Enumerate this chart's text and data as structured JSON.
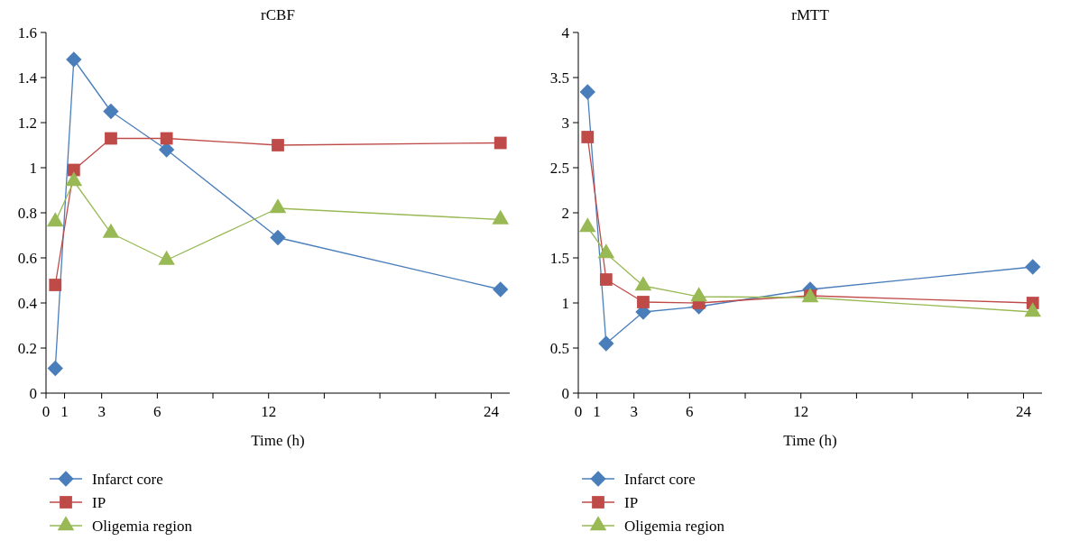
{
  "chart_data": [
    {
      "type": "line",
      "title": "rCBF",
      "xlabel": "Time (h)",
      "x": [
        0.5,
        1.5,
        3.5,
        6.5,
        12.5,
        24.5
      ],
      "xlim": [
        0,
        25
      ],
      "xticks": [
        0,
        1,
        3,
        6,
        {
          "value": 9,
          "label": null
        },
        12,
        {
          "value": 15,
          "label": null
        },
        {
          "value": 18,
          "label": null
        },
        {
          "value": 21,
          "label": null
        },
        24
      ],
      "ylim": [
        0,
        1.6
      ],
      "yticks": [
        0,
        0.2,
        0.4,
        0.6,
        0.8,
        1,
        1.2,
        1.4,
        1.6
      ],
      "grid": false,
      "legend": "bottom",
      "series": [
        {
          "name": "Infarct core",
          "color": "#4a7ebb",
          "marker": "diamond",
          "values": [
            0.11,
            1.48,
            1.25,
            1.08,
            0.69,
            0.46
          ]
        },
        {
          "name": "IP",
          "color": "#be4b48",
          "marker": "square",
          "values": [
            0.48,
            0.99,
            1.13,
            1.13,
            1.1,
            1.11
          ]
        },
        {
          "name": "Oligemia region",
          "color": "#98b954",
          "marker": "triangle",
          "values": [
            0.76,
            0.94,
            0.71,
            0.59,
            0.82,
            0.77
          ]
        }
      ]
    },
    {
      "type": "line",
      "title": "rMTT",
      "xlabel": "Time (h)",
      "x": [
        0.5,
        1.5,
        3.5,
        6.5,
        12.5,
        24.5
      ],
      "xlim": [
        0,
        25
      ],
      "xticks": [
        0,
        1,
        3,
        6,
        {
          "value": 9,
          "label": null
        },
        12,
        {
          "value": 15,
          "label": null
        },
        {
          "value": 18,
          "label": null
        },
        {
          "value": 21,
          "label": null
        },
        24
      ],
      "ylim": [
        0,
        4
      ],
      "yticks": [
        0,
        0.5,
        1,
        1.5,
        2,
        2.5,
        3,
        3.5,
        4
      ],
      "grid": false,
      "legend": "bottom",
      "series": [
        {
          "name": "Infarct core",
          "color": "#4a7ebb",
          "marker": "diamond",
          "values": [
            3.34,
            0.55,
            0.9,
            0.96,
            1.15,
            1.4
          ]
        },
        {
          "name": "IP",
          "color": "#be4b48",
          "marker": "square",
          "values": [
            2.84,
            1.26,
            1.01,
            1.0,
            1.08,
            1.0
          ]
        },
        {
          "name": "Oligemia region",
          "color": "#98b954",
          "marker": "triangle",
          "values": [
            1.84,
            1.55,
            1.19,
            1.07,
            1.06,
            0.9
          ]
        }
      ]
    }
  ]
}
